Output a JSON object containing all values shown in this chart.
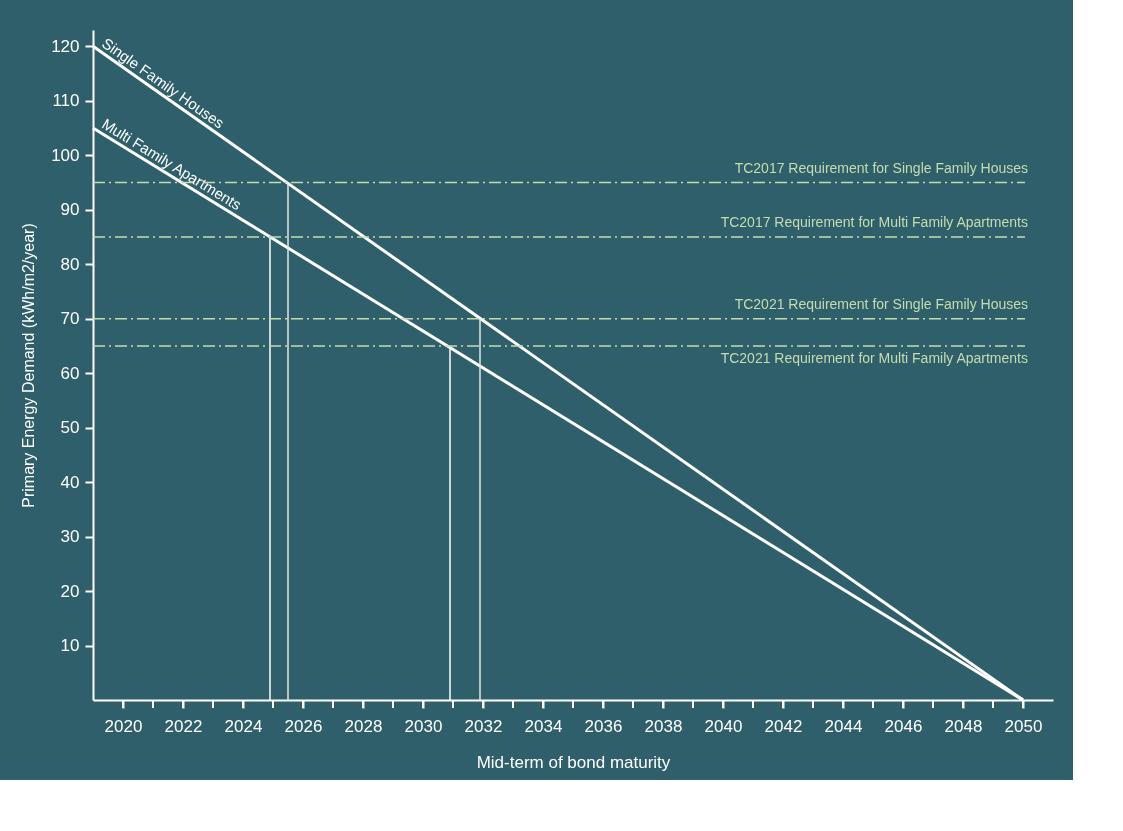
{
  "chart_data": {
    "type": "line",
    "xlabel": "Mid-term of bond maturity",
    "ylabel": "Primary Energy Demand (kWh/m2/year)",
    "xlim": [
      2019,
      2051
    ],
    "ylim": [
      0,
      123
    ],
    "xticks": [
      2020,
      {
        "value": 2021,
        "label": null
      },
      2022,
      {
        "value": 2023,
        "label": null
      },
      2024,
      {
        "value": 2025,
        "label": null
      },
      2026,
      {
        "value": 2027,
        "label": null
      },
      2028,
      {
        "value": 2029,
        "label": null
      },
      2030,
      {
        "value": 2031,
        "label": null
      },
      2032,
      {
        "value": 2033,
        "label": null
      },
      2034,
      {
        "value": 2035,
        "label": null
      },
      2036,
      {
        "value": 2037,
        "label": null
      },
      2038,
      {
        "value": 2039,
        "label": null
      },
      2040,
      {
        "value": 2041,
        "label": null
      },
      2042,
      {
        "value": 2043,
        "label": null
      },
      2044,
      {
        "value": 2045,
        "label": null
      },
      2046,
      {
        "value": 2047,
        "label": null
      },
      2048,
      {
        "value": 2049,
        "label": null
      },
      2050
    ],
    "yticks": [
      10,
      20,
      30,
      40,
      50,
      60,
      70,
      80,
      90,
      100,
      110,
      120
    ],
    "grid": false,
    "marker": "none",
    "line_style": "solid",
    "series": [
      {
        "name": "Single Family Houses",
        "color": "#ffffff",
        "x": [
          2019,
          2050
        ],
        "values": [
          120,
          0
        ]
      },
      {
        "name": "Multi Family Apartments",
        "color": "#ffffff",
        "x": [
          2019,
          2050
        ],
        "values": [
          105,
          0
        ]
      },
      {
        "color": "#e0e6e6",
        "x": [
          2025.5,
          2025.5
        ],
        "values": [
          0,
          95
        ]
      },
      {
        "color": "#ffffff",
        "x": [
          2024.9,
          2024.9
        ],
        "values": [
          0,
          85
        ]
      },
      {
        "color": "#e0e6e6",
        "x": [
          2031.9,
          2031.9
        ],
        "values": [
          0,
          70
        ]
      },
      {
        "color": "#ffffff",
        "x": [
          2030.9,
          2030.9
        ],
        "values": [
          0,
          65
        ]
      }
    ],
    "ref_lines": [
      {
        "axis": "y",
        "value": 95,
        "label": "TC2017 Requirement for Single Family Houses",
        "color": "#c5dcb0",
        "line_style": "dashed"
      },
      {
        "axis": "y",
        "value": 85,
        "label": "TC2017 Requirement for Multi Family Apartments",
        "color": "#c5dcb0",
        "line_style": "dashed"
      },
      {
        "axis": "y",
        "value": 70,
        "label": "TC2021 Requirement for Single Family Houses",
        "color": "#c5dcb0",
        "line_style": "dashed"
      },
      {
        "axis": "y",
        "value": 65,
        "label": "TC2021 Requirement for Multi Family Apartments",
        "color": "#c5dcb0",
        "line_style": "dashed"
      }
    ]
  }
}
